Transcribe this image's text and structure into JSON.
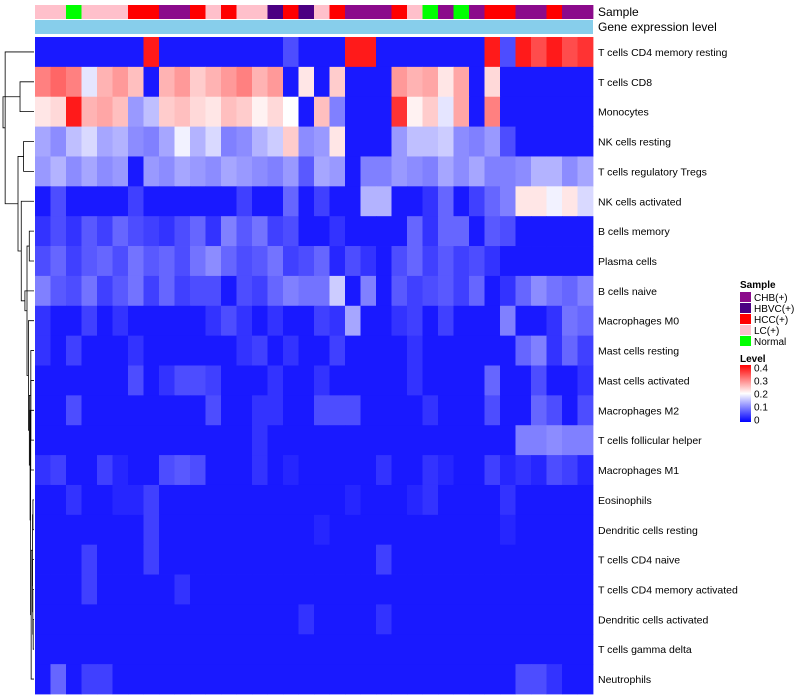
{
  "chart_data": {
    "type": "heatmap",
    "annotation_labels": [
      "Sample",
      "Gene expression level"
    ],
    "color_scale": {
      "low": "#0000ff",
      "mid": "#ffffff",
      "high": "#ff0000",
      "mid_value": 0.2,
      "max_value": 0.4
    },
    "sample_colors": {
      "CHB(+)": "#8b0a8b",
      "HBVC(+)": "#4b0082",
      "HCC(+)": "#ff0000",
      "LC(+)": "#ffc0cb",
      "Normal": "#00ff00"
    },
    "level_bar_color": "#87ceeb",
    "legend": {
      "sample_title": "Sample",
      "sample_entries": [
        "CHB(+)",
        "HBVC(+)",
        "HCC(+)",
        "LC(+)",
        "Normal"
      ],
      "level_title": "Level",
      "level_ticks": [
        {
          "label": "0.4",
          "value": 0.4
        },
        {
          "label": "0.3",
          "value": 0.3
        },
        {
          "label": "0.2",
          "value": 0.2
        },
        {
          "label": "0.1",
          "value": 0.1
        },
        {
          "label": "0",
          "value": 0
        }
      ]
    },
    "column_samples": [
      "LC(+)",
      "LC(+)",
      "Normal",
      "LC(+)",
      "LC(+)",
      "LC(+)",
      "HCC(+)",
      "HCC(+)",
      "CHB(+)",
      "CHB(+)",
      "HCC(+)",
      "LC(+)",
      "HCC(+)",
      "LC(+)",
      "LC(+)",
      "HBVC(+)",
      "HCC(+)",
      "HBVC(+)",
      "LC(+)",
      "HCC(+)",
      "CHB(+)",
      "CHB(+)",
      "CHB(+)",
      "HCC(+)",
      "LC(+)",
      "Normal",
      "CHB(+)",
      "Normal",
      "CHB(+)",
      "HCC(+)",
      "HCC(+)",
      "CHB(+)",
      "CHB(+)",
      "HCC(+)",
      "CHB(+)",
      "CHB(+)"
    ],
    "rows": [
      {
        "name": "T cells CD4 memory resting",
        "values": [
          0.02,
          0.02,
          0.02,
          0.02,
          0.02,
          0.02,
          0.02,
          0.38,
          0.02,
          0.02,
          0.02,
          0.02,
          0.02,
          0.02,
          0.02,
          0.02,
          0.06,
          0.02,
          0.02,
          0.02,
          0.38,
          0.38,
          0.02,
          0.02,
          0.02,
          0.02,
          0.02,
          0.02,
          0.02,
          0.38,
          0.06,
          0.38,
          0.34,
          0.38,
          0.34,
          0.36
        ]
      },
      {
        "name": "T cells CD8",
        "values": [
          0.3,
          0.32,
          0.3,
          0.18,
          0.26,
          0.28,
          0.25,
          0.02,
          0.26,
          0.28,
          0.24,
          0.26,
          0.28,
          0.3,
          0.26,
          0.28,
          0.02,
          0.22,
          0.02,
          0.24,
          0.02,
          0.02,
          0.02,
          0.28,
          0.26,
          0.27,
          0.22,
          0.27,
          0.02,
          0.23,
          0.02,
          0.02,
          0.02,
          0.02,
          0.02,
          0.02
        ]
      },
      {
        "name": "Monocytes",
        "values": [
          0.22,
          0.23,
          0.38,
          0.26,
          0.27,
          0.25,
          0.12,
          0.15,
          0.24,
          0.25,
          0.23,
          0.22,
          0.25,
          0.24,
          0.21,
          0.23,
          0.2,
          0.02,
          0.25,
          0.1,
          0.02,
          0.02,
          0.02,
          0.36,
          0.21,
          0.24,
          0.18,
          0.27,
          0.02,
          0.3,
          0.02,
          0.02,
          0.02,
          0.02,
          0.02,
          0.02
        ]
      },
      {
        "name": "NK cells resting",
        "values": [
          0.13,
          0.11,
          0.15,
          0.17,
          0.13,
          0.14,
          0.11,
          0.1,
          0.13,
          0.19,
          0.14,
          0.17,
          0.1,
          0.11,
          0.14,
          0.16,
          0.24,
          0.11,
          0.12,
          0.22,
          0.02,
          0.02,
          0.02,
          0.12,
          0.15,
          0.15,
          0.16,
          0.11,
          0.1,
          0.12,
          0.06,
          0.02,
          0.02,
          0.02,
          0.02,
          0.02
        ]
      },
      {
        "name": "T cells regulatory  Tregs",
        "values": [
          0.12,
          0.14,
          0.11,
          0.13,
          0.11,
          0.12,
          0.02,
          0.12,
          0.11,
          0.13,
          0.12,
          0.11,
          0.13,
          0.12,
          0.11,
          0.1,
          0.12,
          0.07,
          0.13,
          0.12,
          0.02,
          0.1,
          0.1,
          0.12,
          0.11,
          0.1,
          0.13,
          0.11,
          0.13,
          0.1,
          0.1,
          0.11,
          0.14,
          0.14,
          0.11,
          0.13
        ]
      },
      {
        "name": "NK cells activated",
        "values": [
          0.02,
          0.06,
          0.02,
          0.02,
          0.02,
          0.02,
          0.05,
          0.02,
          0.02,
          0.02,
          0.02,
          0.02,
          0.02,
          0.05,
          0.02,
          0.02,
          0.08,
          0.02,
          0.05,
          0.02,
          0.02,
          0.14,
          0.14,
          0.02,
          0.02,
          0.04,
          0.08,
          0.02,
          0.05,
          0.08,
          0.1,
          0.22,
          0.22,
          0.19,
          0.22,
          0.17
        ]
      },
      {
        "name": "B cells memory",
        "values": [
          0.04,
          0.06,
          0.04,
          0.07,
          0.05,
          0.08,
          0.06,
          0.05,
          0.04,
          0.06,
          0.08,
          0.04,
          0.1,
          0.07,
          0.09,
          0.05,
          0.06,
          0.02,
          0.02,
          0.04,
          0.02,
          0.02,
          0.02,
          0.02,
          0.08,
          0.04,
          0.08,
          0.08,
          0.02,
          0.07,
          0.06,
          0.02,
          0.02,
          0.02,
          0.02,
          0.02
        ]
      },
      {
        "name": "Plasma cells",
        "values": [
          0.06,
          0.08,
          0.05,
          0.07,
          0.08,
          0.06,
          0.09,
          0.07,
          0.08,
          0.06,
          0.09,
          0.11,
          0.08,
          0.06,
          0.07,
          0.09,
          0.05,
          0.06,
          0.08,
          0.03,
          0.06,
          0.04,
          0.02,
          0.06,
          0.08,
          0.05,
          0.07,
          0.05,
          0.06,
          0.04,
          0.02,
          0.02,
          0.02,
          0.02,
          0.02,
          0.02
        ]
      },
      {
        "name": "B cells naive",
        "values": [
          0.1,
          0.07,
          0.06,
          0.09,
          0.05,
          0.07,
          0.09,
          0.05,
          0.08,
          0.05,
          0.06,
          0.06,
          0.02,
          0.06,
          0.05,
          0.08,
          0.1,
          0.09,
          0.09,
          0.16,
          0.02,
          0.1,
          0.02,
          0.07,
          0.05,
          0.06,
          0.07,
          0.05,
          0.08,
          0.02,
          0.04,
          0.08,
          0.11,
          0.09,
          0.08,
          0.1
        ]
      },
      {
        "name": "Macrophages M0",
        "values": [
          0.04,
          0.02,
          0.02,
          0.05,
          0.02,
          0.04,
          0.02,
          0.02,
          0.02,
          0.02,
          0.02,
          0.04,
          0.06,
          0.04,
          0.02,
          0.04,
          0.02,
          0.02,
          0.05,
          0.04,
          0.13,
          0.02,
          0.02,
          0.04,
          0.05,
          0.02,
          0.05,
          0.02,
          0.02,
          0.02,
          0.1,
          0.02,
          0.02,
          0.04,
          0.09,
          0.08
        ]
      },
      {
        "name": "Mast cells resting",
        "values": [
          0.04,
          0.02,
          0.05,
          0.02,
          0.02,
          0.02,
          0.04,
          0.02,
          0.02,
          0.02,
          0.02,
          0.02,
          0.02,
          0.04,
          0.05,
          0.02,
          0.04,
          0.02,
          0.02,
          0.05,
          0.02,
          0.02,
          0.02,
          0.02,
          0.04,
          0.02,
          0.02,
          0.02,
          0.02,
          0.02,
          0.02,
          0.08,
          0.1,
          0.04,
          0.08,
          0.05
        ]
      },
      {
        "name": "Mast cells activated",
        "values": [
          0.02,
          0.02,
          0.02,
          0.02,
          0.02,
          0.02,
          0.06,
          0.02,
          0.04,
          0.06,
          0.06,
          0.05,
          0.02,
          0.02,
          0.02,
          0.04,
          0.02,
          0.02,
          0.04,
          0.02,
          0.02,
          0.02,
          0.02,
          0.02,
          0.04,
          0.02,
          0.02,
          0.02,
          0.02,
          0.08,
          0.02,
          0.02,
          0.06,
          0.02,
          0.02,
          0.04
        ]
      },
      {
        "name": "Macrophages M2",
        "values": [
          0.02,
          0.02,
          0.06,
          0.02,
          0.02,
          0.02,
          0.02,
          0.02,
          0.02,
          0.02,
          0.02,
          0.06,
          0.02,
          0.02,
          0.04,
          0.04,
          0.02,
          0.02,
          0.06,
          0.06,
          0.06,
          0.02,
          0.02,
          0.02,
          0.02,
          0.04,
          0.02,
          0.02,
          0.02,
          0.06,
          0.02,
          0.02,
          0.08,
          0.06,
          0.02,
          0.06
        ]
      },
      {
        "name": "T cells follicular helper",
        "values": [
          0.02,
          0.02,
          0.02,
          0.02,
          0.02,
          0.02,
          0.02,
          0.02,
          0.02,
          0.02,
          0.02,
          0.02,
          0.02,
          0.02,
          0.04,
          0.02,
          0.02,
          0.02,
          0.02,
          0.02,
          0.02,
          0.02,
          0.02,
          0.02,
          0.02,
          0.02,
          0.02,
          0.02,
          0.02,
          0.02,
          0.02,
          0.1,
          0.1,
          0.11,
          0.1,
          0.1
        ]
      },
      {
        "name": "Macrophages M1",
        "values": [
          0.04,
          0.05,
          0.02,
          0.02,
          0.05,
          0.03,
          0.02,
          0.02,
          0.06,
          0.07,
          0.06,
          0.02,
          0.02,
          0.02,
          0.04,
          0.02,
          0.03,
          0.02,
          0.02,
          0.02,
          0.02,
          0.02,
          0.04,
          0.02,
          0.02,
          0.04,
          0.03,
          0.02,
          0.02,
          0.05,
          0.03,
          0.04,
          0.03,
          0.06,
          0.05,
          0.03
        ]
      },
      {
        "name": "Eosinophils",
        "values": [
          0.02,
          0.02,
          0.04,
          0.02,
          0.02,
          0.03,
          0.03,
          0.05,
          0.02,
          0.02,
          0.02,
          0.02,
          0.02,
          0.02,
          0.02,
          0.02,
          0.02,
          0.02,
          0.02,
          0.02,
          0.03,
          0.02,
          0.02,
          0.02,
          0.03,
          0.04,
          0.02,
          0.02,
          0.02,
          0.02,
          0.04,
          0.02,
          0.02,
          0.02,
          0.02,
          0.02
        ]
      },
      {
        "name": "Dendritic cells resting",
        "values": [
          0.02,
          0.02,
          0.02,
          0.02,
          0.02,
          0.02,
          0.02,
          0.05,
          0.02,
          0.02,
          0.02,
          0.02,
          0.02,
          0.02,
          0.02,
          0.02,
          0.02,
          0.02,
          0.03,
          0.02,
          0.02,
          0.02,
          0.02,
          0.02,
          0.02,
          0.02,
          0.02,
          0.02,
          0.02,
          0.02,
          0.03,
          0.02,
          0.02,
          0.02,
          0.02,
          0.02
        ]
      },
      {
        "name": "T cells CD4 naive",
        "values": [
          0.02,
          0.02,
          0.02,
          0.05,
          0.02,
          0.02,
          0.02,
          0.05,
          0.02,
          0.02,
          0.02,
          0.02,
          0.02,
          0.02,
          0.02,
          0.02,
          0.02,
          0.02,
          0.02,
          0.02,
          0.02,
          0.02,
          0.05,
          0.02,
          0.02,
          0.02,
          0.02,
          0.02,
          0.02,
          0.02,
          0.02,
          0.02,
          0.02,
          0.02,
          0.02,
          0.02
        ]
      },
      {
        "name": "T cells CD4 memory activated",
        "values": [
          0.02,
          0.02,
          0.02,
          0.05,
          0.02,
          0.02,
          0.02,
          0.02,
          0.02,
          0.04,
          0.02,
          0.02,
          0.02,
          0.02,
          0.02,
          0.02,
          0.02,
          0.02,
          0.02,
          0.02,
          0.02,
          0.02,
          0.02,
          0.02,
          0.02,
          0.02,
          0.02,
          0.02,
          0.02,
          0.02,
          0.02,
          0.02,
          0.02,
          0.02,
          0.02,
          0.02
        ]
      },
      {
        "name": "Dendritic cells activated",
        "values": [
          0.02,
          0.02,
          0.02,
          0.02,
          0.02,
          0.02,
          0.02,
          0.02,
          0.02,
          0.02,
          0.02,
          0.02,
          0.02,
          0.02,
          0.02,
          0.02,
          0.02,
          0.04,
          0.02,
          0.02,
          0.02,
          0.02,
          0.04,
          0.02,
          0.02,
          0.02,
          0.02,
          0.02,
          0.02,
          0.02,
          0.02,
          0.02,
          0.02,
          0.02,
          0.02,
          0.02
        ]
      },
      {
        "name": "T cells gamma delta",
        "values": [
          0.02,
          0.02,
          0.02,
          0.02,
          0.02,
          0.02,
          0.02,
          0.02,
          0.02,
          0.02,
          0.02,
          0.02,
          0.02,
          0.02,
          0.02,
          0.02,
          0.02,
          0.02,
          0.02,
          0.02,
          0.02,
          0.02,
          0.02,
          0.02,
          0.02,
          0.02,
          0.02,
          0.02,
          0.02,
          0.02,
          0.02,
          0.02,
          0.02,
          0.02,
          0.02,
          0.02
        ]
      },
      {
        "name": "Neutrophils",
        "values": [
          0.02,
          0.08,
          0.02,
          0.05,
          0.05,
          0.02,
          0.02,
          0.02,
          0.02,
          0.02,
          0.02,
          0.02,
          0.02,
          0.02,
          0.02,
          0.02,
          0.02,
          0.02,
          0.02,
          0.02,
          0.02,
          0.02,
          0.02,
          0.02,
          0.02,
          0.02,
          0.02,
          0.02,
          0.02,
          0.02,
          0.02,
          0.06,
          0.06,
          0.04,
          0.02,
          0.02
        ]
      }
    ]
  }
}
